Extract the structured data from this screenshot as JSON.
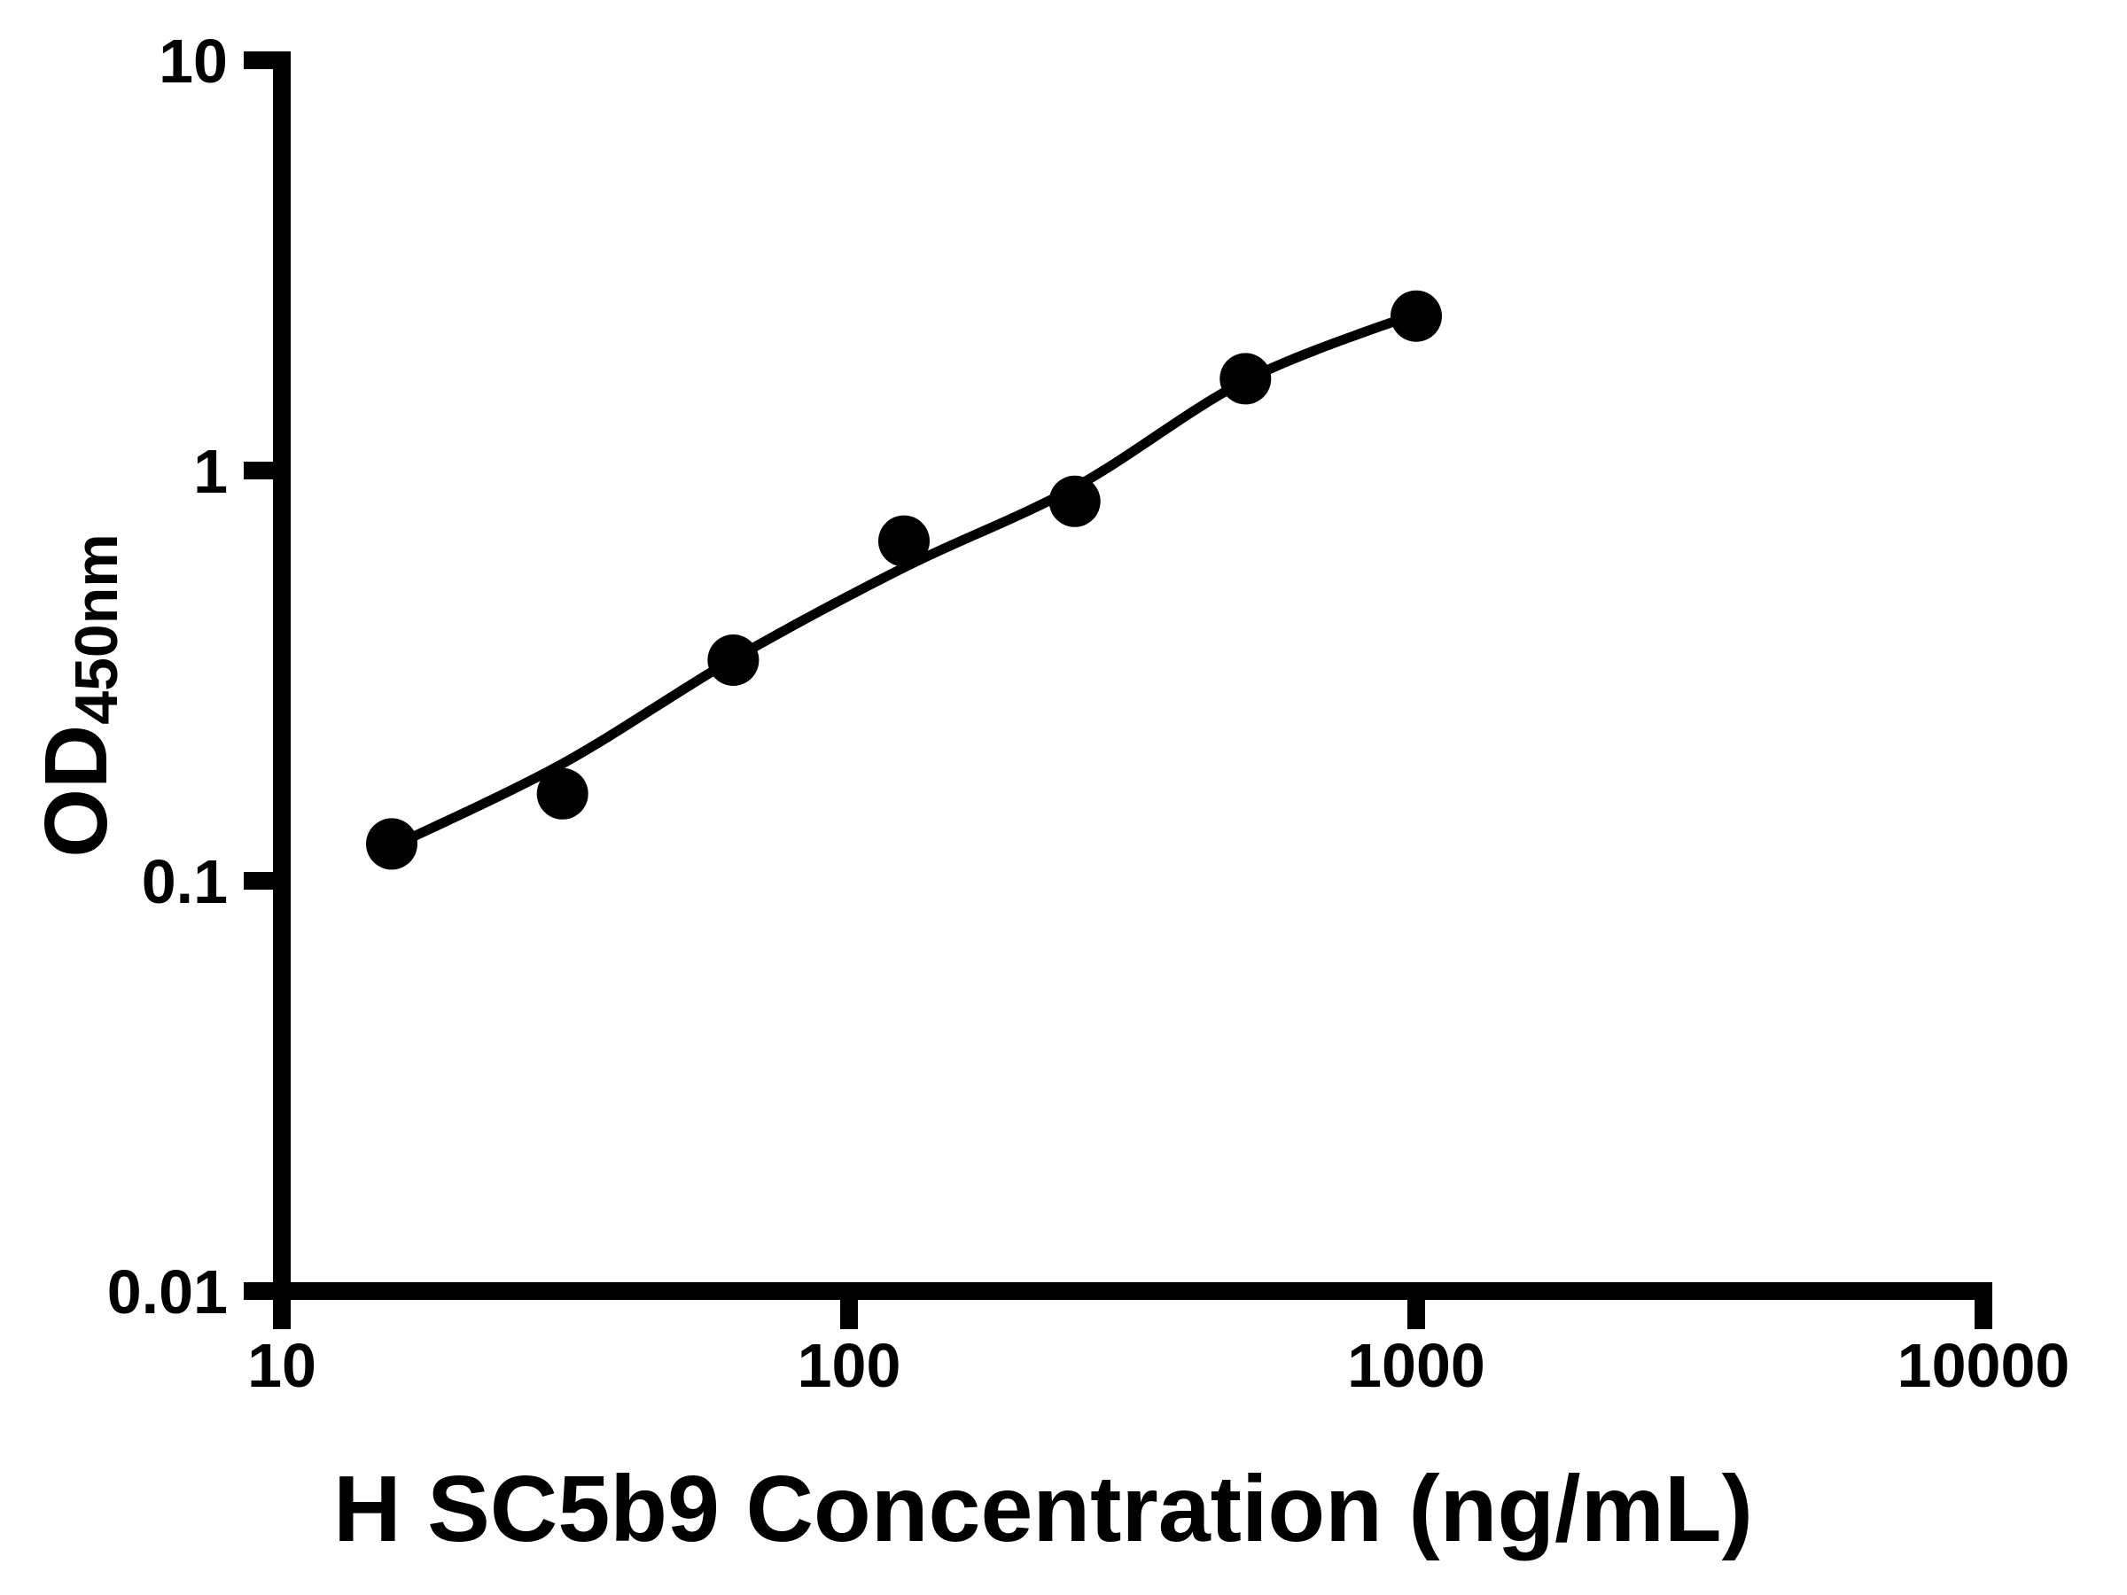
{
  "chart_data": {
    "type": "scatter",
    "title": "",
    "xlabel": "H SC5b9 Concentration (ng/mL)",
    "ylabel_main": "OD",
    "ylabel_sub": "450nm",
    "x_scale": "log",
    "y_scale": "log",
    "xlim": [
      10,
      10000
    ],
    "ylim": [
      0.01,
      10
    ],
    "grid": "off",
    "legend": "none",
    "colors": {
      "marker": "#000000",
      "line": "#000000",
      "axis": "#000000",
      "background": "#ffffff"
    },
    "x_ticks": [
      {
        "value": 10,
        "label": "10"
      },
      {
        "value": 100,
        "label": "100"
      },
      {
        "value": 1000,
        "label": "1000"
      },
      {
        "value": 10000,
        "label": "10000"
      }
    ],
    "y_ticks": [
      {
        "value": 10,
        "label": "10"
      },
      {
        "value": 1,
        "label": "1"
      },
      {
        "value": 0.1,
        "label": "0.1"
      },
      {
        "value": 0.01,
        "label": "0.01"
      }
    ],
    "series": [
      {
        "name": "standard-points",
        "marker": "filled-circle",
        "points": [
          {
            "x": 15.625,
            "y": 0.123
          },
          {
            "x": 31.25,
            "y": 0.163
          },
          {
            "x": 62.5,
            "y": 0.345
          },
          {
            "x": 125,
            "y": 0.673
          },
          {
            "x": 250,
            "y": 0.841
          },
          {
            "x": 500,
            "y": 1.674
          },
          {
            "x": 1000,
            "y": 2.379
          }
        ]
      }
    ],
    "fit_curve": {
      "name": "standard-curve-fit",
      "points": [
        {
          "x": 15.625,
          "y": 0.121
        },
        {
          "x": 31.25,
          "y": 0.193
        },
        {
          "x": 62.5,
          "y": 0.347
        },
        {
          "x": 125,
          "y": 0.58
        },
        {
          "x": 250,
          "y": 0.91
        },
        {
          "x": 500,
          "y": 1.657
        },
        {
          "x": 1000,
          "y": 2.415
        }
      ]
    }
  }
}
